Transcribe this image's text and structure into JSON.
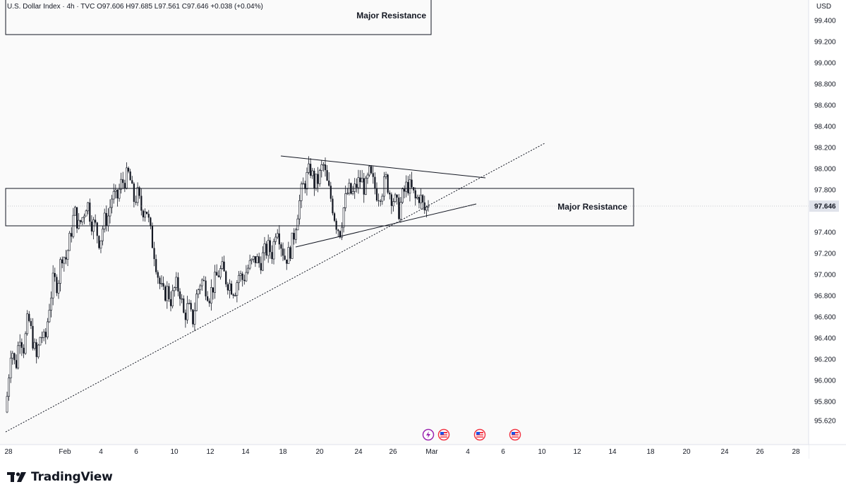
{
  "header": {
    "legend": "U.S. Dollar Index · 4h · TVC  O97.606  H97.685  L97.561  C97.646  +0.038 (+0.04%)",
    "currency": "USD"
  },
  "brand": {
    "name": "TradingView",
    "logo_icon": "tradingview-logo-icon"
  },
  "annotations": {
    "top_box_label": "Major Resistance",
    "zone_label": "Major Resistance"
  },
  "colors": {
    "candle": "#131722",
    "line": "#131722",
    "background": "#ffffff",
    "plot_bg": "#fafafa",
    "grid": "#e6e6e6",
    "price_badge_bg": "#e0e3eb",
    "event_purple": "#9c27b0",
    "event_red": "#f23645"
  },
  "event_markers": [
    "lightning-event-icon",
    "us-flag-event-icon",
    "us-flag-event-icon",
    "us-flag-event-icon"
  ],
  "chart_data": {
    "type": "candlestick",
    "title": "U.S. Dollar Index · 4h · TVC",
    "ylabel": "USD",
    "y_ticks": [
      "99.400",
      "99.200",
      "99.000",
      "98.800",
      "98.600",
      "98.400",
      "98.200",
      "98.000",
      "97.800",
      "97.646",
      "97.400",
      "97.200",
      "97.000",
      "96.800",
      "96.600",
      "96.400",
      "96.200",
      "96.000",
      "95.800",
      "95.620"
    ],
    "x_ticks": [
      "28",
      "Feb",
      "4",
      "6",
      "10",
      "12",
      "14",
      "18",
      "20",
      "24",
      "26",
      "Mar",
      "4",
      "6",
      "10",
      "12",
      "14",
      "18",
      "20",
      "24",
      "26",
      "28"
    ],
    "ylim": [
      95.45,
      99.55
    ],
    "last_price": 97.646,
    "grid": true,
    "resistance_zone": [
      97.47,
      97.82
    ],
    "ohlc_path": [
      95.85,
      96.35,
      96.1,
      96.45,
      96.3,
      96.6,
      96.4,
      96.2,
      96.45,
      96.35,
      96.7,
      96.95,
      96.9,
      97.2,
      97.15,
      97.35,
      97.6,
      97.45,
      97.55,
      97.7,
      97.5,
      97.45,
      97.3,
      97.5,
      97.55,
      97.75,
      97.7,
      97.85,
      97.9,
      97.95,
      97.7,
      97.75,
      97.6,
      97.65,
      97.4,
      97.2,
      96.95,
      96.8,
      96.85,
      96.75,
      96.9,
      96.85,
      96.6,
      96.7,
      96.55,
      96.8,
      96.95,
      96.9,
      96.8,
      96.9,
      97.0,
      97.05,
      96.95,
      96.9,
      96.85,
      97.0,
      96.95,
      97.05,
      97.1,
      97.15,
      97.1,
      97.2,
      97.25,
      97.2,
      97.5,
      97.3,
      97.15,
      97.2,
      97.35,
      97.6,
      97.8,
      97.9,
      98.0,
      97.85,
      97.9,
      98.05,
      97.85,
      97.7,
      97.5,
      97.4,
      97.65,
      97.8,
      97.75,
      97.85,
      97.9,
      97.8,
      97.95,
      97.85,
      97.75,
      97.8,
      97.9,
      97.75,
      97.7,
      97.6,
      97.75,
      97.85,
      97.8,
      97.7,
      97.75,
      97.6,
      97.646
    ],
    "trendlines": [
      {
        "from": [
          "Jan 27",
          95.5
        ],
        "to": [
          "Mar 8",
          98.25
        ],
        "style": "dotted"
      },
      {
        "from": [
          "Feb 18",
          98.12
        ],
        "to": [
          "Mar 5",
          97.92
        ],
        "style": "solid"
      },
      {
        "from": [
          "Feb 18",
          97.33
        ],
        "to": [
          "Mar 4",
          97.73
        ],
        "style": "solid"
      }
    ]
  }
}
